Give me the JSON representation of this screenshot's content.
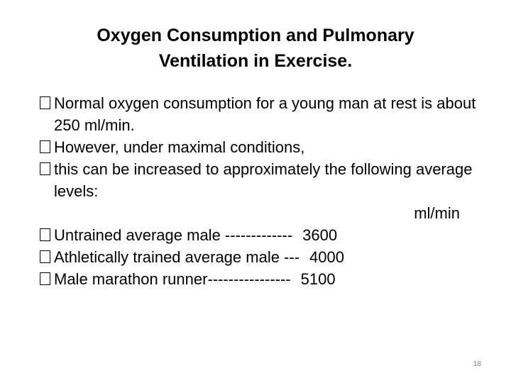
{
  "title": {
    "line1": "Oxygen Consumption and Pulmonary",
    "line2": "Ventilation in Exercise."
  },
  "bullets": [
    "Normal oxygen consumption for a young man at rest is about 250 ml/min.",
    "However, under maximal conditions,",
    "this can be increased to approximately the following average levels:"
  ],
  "unit": "ml/min",
  "levels": [
    {
      "label": "Untrained average male -------------",
      "value": "3600"
    },
    {
      "label": "Athletically trained average male ---",
      "value": "4000"
    },
    {
      "label": "Male marathon runner----------------",
      "value": "5100"
    }
  ],
  "page_number": "18"
}
